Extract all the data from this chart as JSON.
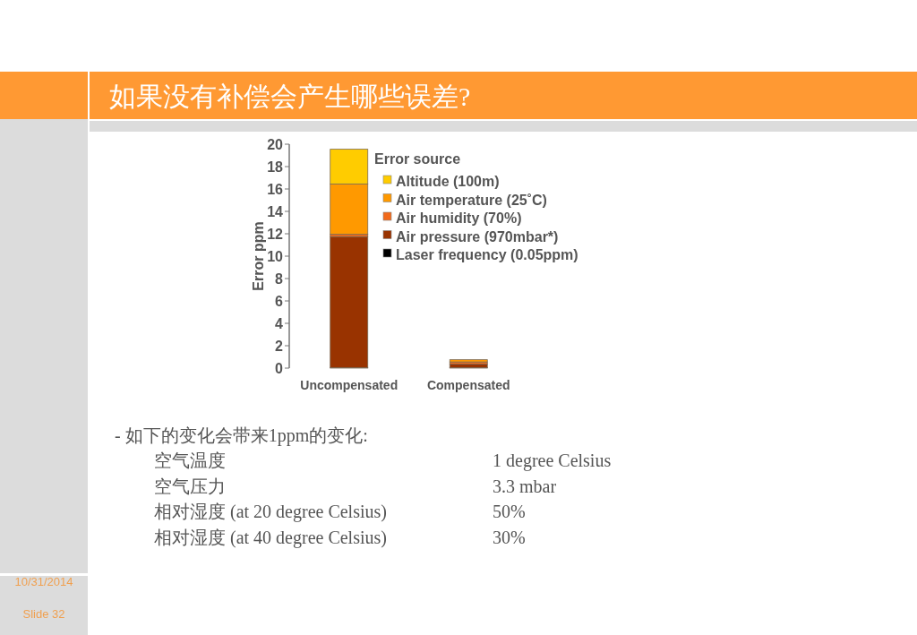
{
  "chart_data": {
    "type": "bar",
    "stacked": true,
    "title": "如果没有补偿会产生哪些误差?",
    "ylabel": "Error ppm",
    "legend_title": "Error source",
    "legend": "top right",
    "grid": false,
    "categories": [
      "Uncompensated",
      "Compensated"
    ],
    "series": [
      {
        "name": "Laser frequency (0.05ppm)",
        "color": "#000000",
        "values": [
          0.05,
          0.05
        ]
      },
      {
        "name": "Air pressure (970mbar*)",
        "color": "#993300",
        "values": [
          11.7,
          0.3
        ]
      },
      {
        "name": "Air humidity (70%)",
        "color": "#f26a1b",
        "values": [
          0.2,
          0.2
        ]
      },
      {
        "name": "Air temperature (25˚C)",
        "color": "#ff9900",
        "values": [
          4.5,
          0.2
        ]
      },
      {
        "name": "Altitude (100m)",
        "color": "#ffcc00",
        "values": [
          3.1,
          0
        ]
      }
    ],
    "ylim": [
      0,
      20
    ],
    "yticks": [
      0,
      2,
      4,
      6,
      8,
      10,
      12,
      14,
      16,
      18,
      20
    ],
    "annotations": [
      "- 如下的变化会带来1ppm的变化:",
      "空气温度",
      "1 degree Celsius",
      "空气压力",
      "3.3 mbar",
      "相对湿度 (at 20 degree Celsius)",
      "50%",
      "相对湿度 (at 40 degree Celsius)",
      "30%",
      "10/31/2014",
      "Slide 32"
    ]
  }
}
